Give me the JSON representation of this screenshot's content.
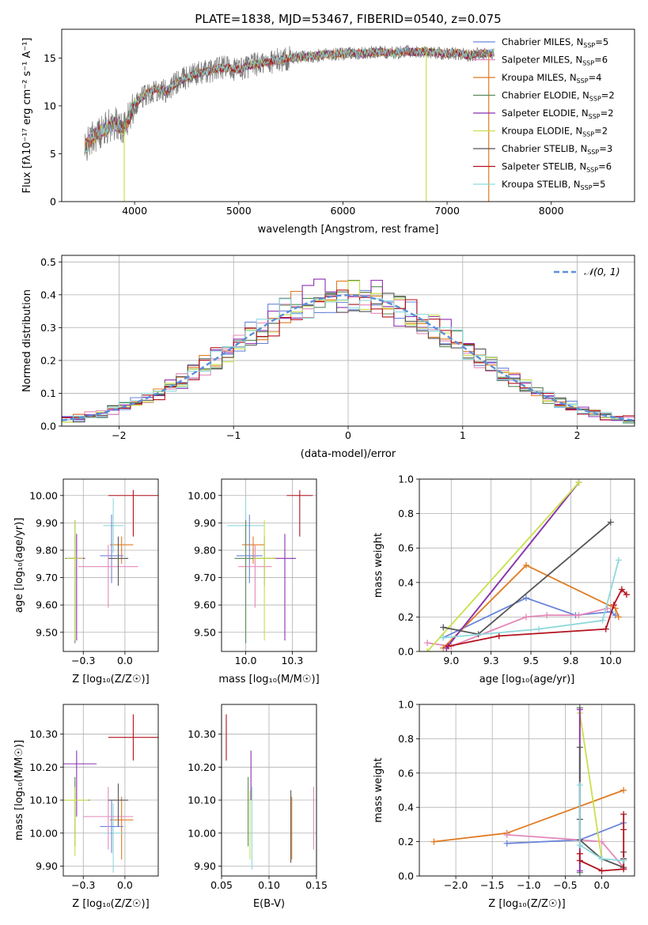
{
  "figure": {
    "title": "PLATE=1838, MJD=53467, FIBERID=0540, z=0.075"
  },
  "colors": {
    "Chabrier MILES": "#6b86d9",
    "Salpeter MILES": "#e389b9",
    "Kroupa MILES": "#e07b22",
    "Chabrier ELODIE": "#5a8a5a",
    "Salpeter ELODIE": "#8e2fb0",
    "Kroupa ELODIE": "#c8e04a",
    "Chabrier STELIB": "#555555",
    "Salpeter STELIB": "#b3121d",
    "Kroupa STELIB": "#8fd9dc",
    "data": "#777777",
    "normal": "#5b8fd9",
    "grid": "#b0b0b0"
  },
  "chart_data": [
    {
      "id": "spectrum",
      "type": "line",
      "title": "PLATE=1838, MJD=53467, FIBERID=0540, z=0.075",
      "xlabel": "wavelength [Angstrom, rest frame]",
      "ylabel": "Flux [fλ10⁻¹⁷ erg cm⁻² s⁻¹ A⁻¹]",
      "xlim": [
        3300,
        8800
      ],
      "ylim": [
        0,
        18
      ],
      "xticks": [
        4000,
        5000,
        6000,
        7000,
        8000
      ],
      "yticks": [
        0,
        5,
        10,
        15
      ],
      "grid": false,
      "legend_position": "top-right",
      "legend": [
        "Chabrier MILES, N_SSP=5",
        "Salpeter MILES, N_SSP=6",
        "Kroupa MILES, N_SSP=4",
        "Chabrier ELODIE, N_SSP=2",
        "Salpeter ELODIE, N_SSP=2",
        "Kroupa ELODIE, N_SSP=2",
        "Chabrier STELIB, N_SSP=3",
        "Salpeter STELIB, N_SSP=6",
        "Kroupa STELIB, N_SSP=5"
      ],
      "continuum": {
        "x": [
          3520,
          3600,
          3700,
          3800,
          3900,
          4000,
          4100,
          4200,
          4300,
          4400,
          4500,
          4600,
          4700,
          4800,
          4900,
          5000,
          5100,
          5200,
          5300,
          5400,
          5500,
          5600,
          5700,
          5800,
          5900,
          6000,
          6100,
          6200,
          6300,
          6400,
          6500,
          6600,
          6700,
          6800,
          6900,
          7000,
          7100,
          7200,
          7300,
          7400,
          7450
        ],
        "y": [
          5.5,
          6.8,
          7.5,
          8.2,
          7.6,
          10.2,
          11.2,
          11.8,
          11.5,
          12.4,
          13.0,
          13.4,
          13.6,
          13.9,
          14.0,
          13.8,
          14.2,
          14.4,
          14.6,
          14.8,
          15.0,
          15.1,
          15.2,
          15.3,
          15.4,
          15.4,
          15.5,
          15.5,
          15.6,
          15.6,
          15.5,
          15.7,
          15.6,
          15.7,
          15.5,
          15.4,
          15.5,
          15.3,
          15.4,
          15.5,
          15.5
        ]
      },
      "dips": [
        {
          "series": "Kroupa ELODIE",
          "x": 3900
        },
        {
          "series": "Kroupa ELODIE",
          "x": 6800
        },
        {
          "series": "Kroupa MILES",
          "x": 7400
        }
      ]
    },
    {
      "id": "residuals",
      "type": "histogram",
      "xlabel": "(data-model)/error",
      "ylabel": "Normed distribution",
      "xlim": [
        -2.5,
        2.5
      ],
      "ylim": [
        0,
        0.52
      ],
      "xticks": [
        -2,
        -1,
        0,
        1,
        2
      ],
      "yticks": [
        0.0,
        0.1,
        0.2,
        0.3,
        0.4,
        0.5
      ],
      "grid": true,
      "legend": [
        "𝒩(0, 1)"
      ],
      "legend_position": "top-right",
      "bin_width": 0.1,
      "bin_start": -2.5
    },
    {
      "id": "age-Z",
      "type": "errorbar",
      "xlabel": "Z [log₁₀(Z/Z☉)]",
      "ylabel": "age  [log₁₀(age/yr)]",
      "xlim": [
        -0.37,
        0.2
      ],
      "ylim": [
        9.43,
        10.06
      ],
      "xticks": [
        -0.25,
        0.0
      ],
      "yticks": [
        9.5,
        9.6,
        9.7,
        9.8,
        9.9,
        10.0
      ],
      "grid": true,
      "points": [
        {
          "series": "Salpeter STELIB",
          "x": 0.05,
          "xerr": 0.15,
          "y": 10.0,
          "yerr_lo": 0.15,
          "yerr_hi": 0.02
        },
        {
          "series": "Kroupa MILES",
          "x": -0.02,
          "xerr": 0.07,
          "y": 9.82,
          "yerr_lo": 0.07,
          "yerr_hi": 0.03
        },
        {
          "series": "Kroupa STELIB",
          "x": -0.07,
          "xerr": 0.06,
          "y": 9.89,
          "yerr_lo": 0.1,
          "yerr_hi": 0.1
        },
        {
          "series": "Chabrier MILES",
          "x": -0.08,
          "xerr": 0.07,
          "y": 9.78,
          "yerr_lo": 0.1,
          "yerr_hi": 0.15
        },
        {
          "series": "Salpeter MILES",
          "x": -0.1,
          "xerr": 0.18,
          "y": 9.74,
          "yerr_lo": 0.15,
          "yerr_hi": 0.08
        },
        {
          "series": "Chabrier STELIB",
          "x": -0.04,
          "xerr": 0.06,
          "y": 9.77,
          "yerr_lo": 0.1,
          "yerr_hi": 0.08
        },
        {
          "series": "Chabrier ELODIE",
          "x": -0.3,
          "xerr": 0.06,
          "y": 9.77,
          "yerr_lo": 0.31,
          "yerr_hi": 0.14
        },
        {
          "series": "Salpeter ELODIE",
          "x": -0.29,
          "xerr": 0.05,
          "y": 9.77,
          "yerr_lo": 0.3,
          "yerr_hi": 0.09
        },
        {
          "series": "Kroupa ELODIE",
          "x": -0.3,
          "xerr": 0.05,
          "y": 9.77,
          "yerr_lo": 0.3,
          "yerr_hi": 0.14
        }
      ]
    },
    {
      "id": "age-mass",
      "type": "errorbar",
      "xlabel": "mass [log₁₀(M/M☉)]",
      "xlim": [
        9.87,
        10.38
      ],
      "ylim": [
        9.43,
        10.06
      ],
      "xticks": [
        10.0,
        10.25
      ],
      "yticks": [
        9.5,
        9.6,
        9.7,
        9.8,
        9.9,
        10.0
      ],
      "grid": true,
      "points": [
        {
          "series": "Salpeter STELIB",
          "x": 10.29,
          "xerr": 0.07,
          "y": 10.0,
          "yerr_lo": 0.15,
          "yerr_hi": 0.02
        },
        {
          "series": "Kroupa MILES",
          "x": 10.04,
          "xerr": 0.06,
          "y": 9.82,
          "yerr_lo": 0.07,
          "yerr_hi": 0.03
        },
        {
          "series": "Kroupa STELIB",
          "x": 10.0,
          "xerr": 0.1,
          "y": 9.89,
          "yerr_lo": 0.1,
          "yerr_hi": 0.1
        },
        {
          "series": "Chabrier MILES",
          "x": 10.02,
          "xerr": 0.07,
          "y": 9.78,
          "yerr_lo": 0.1,
          "yerr_hi": 0.15
        },
        {
          "series": "Salpeter MILES",
          "x": 10.05,
          "xerr": 0.09,
          "y": 9.74,
          "yerr_lo": 0.15,
          "yerr_hi": 0.08
        },
        {
          "series": "Chabrier STELIB",
          "x": 10.1,
          "xerr": 0.06,
          "y": 9.77,
          "yerr_lo": 0.1,
          "yerr_hi": 0.08
        },
        {
          "series": "Chabrier ELODIE",
          "x": 10.0,
          "xerr": 0.06,
          "y": 9.77,
          "yerr_lo": 0.31,
          "yerr_hi": 0.14
        },
        {
          "series": "Salpeter ELODIE",
          "x": 10.21,
          "xerr": 0.06,
          "y": 9.77,
          "yerr_lo": 0.3,
          "yerr_hi": 0.09
        },
        {
          "series": "Kroupa ELODIE",
          "x": 10.1,
          "xerr": 0.06,
          "y": 9.77,
          "yerr_lo": 0.3,
          "yerr_hi": 0.14
        }
      ]
    },
    {
      "id": "massweight-age",
      "type": "line",
      "xlabel": "age  [log₁₀(age/yr)]",
      "ylabel": "mass weight",
      "xlim": [
        8.8,
        10.15
      ],
      "ylim": [
        0,
        1.0
      ],
      "xticks": [
        9.0,
        9.25,
        9.5,
        9.75,
        10.0
      ],
      "yticks": [
        0.0,
        0.2,
        0.4,
        0.6,
        0.8,
        1.0
      ],
      "grid": true,
      "series": [
        {
          "name": "Chabrier MILES",
          "x": [
            8.95,
            9.47,
            9.78,
            10.0,
            10.03
          ],
          "y": [
            0.08,
            0.31,
            0.21,
            0.23,
            0.21
          ]
        },
        {
          "name": "Salpeter MILES",
          "x": [
            8.85,
            9.0,
            9.47,
            9.6,
            9.8,
            9.98
          ],
          "y": [
            0.05,
            0.03,
            0.2,
            0.21,
            0.21,
            0.25
          ]
        },
        {
          "name": "Kroupa MILES",
          "x": [
            8.95,
            9.47,
            10.03,
            10.05
          ],
          "y": [
            0.02,
            0.5,
            0.25,
            0.2
          ]
        },
        {
          "name": "Chabrier ELODIE",
          "x": [
            8.97,
            9.8
          ],
          "y": [
            0.02,
            0.98
          ]
        },
        {
          "name": "Salpeter ELODIE",
          "x": [
            8.97,
            9.8
          ],
          "y": [
            0.02,
            0.98
          ]
        },
        {
          "name": "Kroupa ELODIE",
          "x": [
            8.85,
            9.8
          ],
          "y": [
            0.0,
            0.98
          ]
        },
        {
          "name": "Chabrier STELIB",
          "x": [
            8.95,
            9.17,
            10.0
          ],
          "y": [
            0.14,
            0.1,
            0.75
          ]
        },
        {
          "name": "Salpeter STELIB",
          "x": [
            8.98,
            9.3,
            9.97,
            10.02,
            10.07,
            10.1
          ],
          "y": [
            0.03,
            0.09,
            0.13,
            0.27,
            0.36,
            0.33
          ]
        },
        {
          "name": "Kroupa STELIB",
          "x": [
            8.95,
            9.55,
            9.95,
            10.05
          ],
          "y": [
            0.08,
            0.13,
            0.18,
            0.53
          ]
        }
      ]
    },
    {
      "id": "mass-Z",
      "type": "errorbar",
      "xlabel": "Z [log₁₀(Z/Z☉)]",
      "ylabel": "mass [log₁₀(M/M☉)]",
      "xlim": [
        -0.37,
        0.2
      ],
      "ylim": [
        9.87,
        10.39
      ],
      "xticks": [
        -0.25,
        0.0
      ],
      "yticks": [
        9.9,
        10.0,
        10.1,
        10.2,
        10.3
      ],
      "grid": true,
      "points": [
        {
          "series": "Salpeter STELIB",
          "x": 0.05,
          "xerr": 0.15,
          "y": 10.29,
          "yerr_lo": 0.07,
          "yerr_hi": 0.07
        },
        {
          "series": "Kroupa MILES",
          "x": -0.02,
          "xerr": 0.07,
          "y": 10.04,
          "yerr_lo": 0.12,
          "yerr_hi": 0.07
        },
        {
          "series": "Kroupa STELIB",
          "x": -0.07,
          "xerr": 0.06,
          "y": 10.0,
          "yerr_lo": 0.12,
          "yerr_hi": 0.09
        },
        {
          "series": "Chabrier MILES",
          "x": -0.08,
          "xerr": 0.07,
          "y": 10.02,
          "yerr_lo": 0.08,
          "yerr_hi": 0.08
        },
        {
          "series": "Salpeter MILES",
          "x": -0.1,
          "xerr": 0.15,
          "y": 10.05,
          "yerr_lo": 0.1,
          "yerr_hi": 0.09
        },
        {
          "series": "Chabrier STELIB",
          "x": -0.04,
          "xerr": 0.06,
          "y": 10.1,
          "yerr_lo": 0.08,
          "yerr_hi": 0.05
        },
        {
          "series": "Chabrier ELODIE",
          "x": -0.3,
          "xerr": 0.09,
          "y": 10.1,
          "yerr_lo": 0.14,
          "yerr_hi": 0.07
        },
        {
          "series": "Salpeter ELODIE",
          "x": -0.29,
          "xerr": 0.12,
          "y": 10.21,
          "yerr_lo": 0.16,
          "yerr_hi": 0.04
        },
        {
          "series": "Kroupa ELODIE",
          "x": -0.3,
          "xerr": 0.08,
          "y": 10.1,
          "yerr_lo": 0.17,
          "yerr_hi": 0.04
        }
      ]
    },
    {
      "id": "mass-EBV",
      "type": "errorbar",
      "xlabel": "E(B-V)",
      "xlim": [
        0.05,
        0.15
      ],
      "ylim": [
        9.87,
        10.39
      ],
      "xticks": [
        0.05,
        0.1,
        0.15
      ],
      "yticks": [
        9.9,
        10.0,
        10.1,
        10.2,
        10.3
      ],
      "grid": true,
      "points": [
        {
          "series": "Salpeter STELIB",
          "x": 0.055,
          "xerr": 0,
          "y": 10.29,
          "yerr_lo": 0.07,
          "yerr_hi": 0.07
        },
        {
          "series": "Salpeter ELODIE",
          "x": 0.081,
          "xerr": 0,
          "y": 10.2,
          "yerr_lo": 0.1,
          "yerr_hi": 0.05
        },
        {
          "series": "Chabrier ELODIE",
          "x": 0.078,
          "xerr": 0,
          "y": 10.1,
          "yerr_lo": 0.14,
          "yerr_hi": 0.07
        },
        {
          "series": "Kroupa ELODIE",
          "x": 0.08,
          "xerr": 0,
          "y": 10.06,
          "yerr_lo": 0.14,
          "yerr_hi": 0.07
        },
        {
          "series": "Kroupa STELIB",
          "x": 0.082,
          "xerr": 0,
          "y": 10.03,
          "yerr_lo": 0.14,
          "yerr_hi": 0.11
        },
        {
          "series": "Chabrier STELIB",
          "x": 0.123,
          "xerr": 0,
          "y": 10.04,
          "yerr_lo": 0.13,
          "yerr_hi": 0.09
        },
        {
          "series": "Kroupa MILES",
          "x": 0.124,
          "xerr": 0,
          "y": 10.04,
          "yerr_lo": 0.12,
          "yerr_hi": 0.07
        },
        {
          "series": "Salpeter MILES",
          "x": 0.147,
          "xerr": 0,
          "y": 10.05,
          "yerr_lo": 0.1,
          "yerr_hi": 0.09
        }
      ]
    },
    {
      "id": "massweight-Z",
      "type": "line",
      "xlabel": "Z [log₁₀(Z/Z☉)]",
      "ylabel": "mass weight",
      "xlim": [
        -2.5,
        0.45
      ],
      "ylim": [
        0,
        1.0
      ],
      "xticks": [
        -2.0,
        -1.5,
        -1.0,
        -0.5,
        0.0
      ],
      "yticks": [
        0.0,
        0.2,
        0.4,
        0.6,
        0.8,
        1.0
      ],
      "grid": true,
      "series": [
        {
          "name": "Kroupa MILES",
          "x": [
            -2.3,
            -1.3,
            0.3
          ],
          "y": [
            0.2,
            0.25,
            0.5
          ]
        },
        {
          "name": "Chabrier MILES",
          "x": [
            -1.3,
            -0.3,
            0.3
          ],
          "y": [
            0.19,
            0.21,
            0.31
          ]
        },
        {
          "name": "Salpeter MILES",
          "x": [
            -1.3,
            -0.3,
            0.0,
            0.3
          ],
          "y": [
            0.24,
            0.21,
            0.2,
            0.05
          ]
        },
        {
          "name": "Kroupa ELODIE",
          "x": [
            -0.3,
            -0.3,
            0.0
          ],
          "y": [
            0.98,
            0.95,
            0.1
          ]
        },
        {
          "name": "Chabrier ELODIE",
          "x": [
            -0.3,
            -0.3
          ],
          "y": [
            0.02,
            0.98
          ]
        },
        {
          "name": "Salpeter ELODIE",
          "x": [
            -0.3,
            -0.3
          ],
          "y": [
            0.03,
            0.97
          ]
        },
        {
          "name": "Chabrier STELIB",
          "x": [
            -0.3,
            -0.3,
            -0.3,
            0.0,
            0.3,
            0.3,
            0.3
          ],
          "y": [
            0.75,
            0.33,
            0.21,
            0.1,
            0.05,
            0.14,
            0.1
          ]
        },
        {
          "name": "Salpeter STELIB",
          "x": [
            -0.3,
            -0.3,
            0.0,
            0.3,
            0.3,
            0.3
          ],
          "y": [
            0.13,
            0.09,
            0.03,
            0.04,
            0.36,
            0.27
          ]
        },
        {
          "name": "Kroupa STELIB",
          "x": [
            -0.3,
            -0.3,
            0.0,
            0.3
          ],
          "y": [
            0.53,
            0.18,
            0.1,
            0.09
          ]
        }
      ]
    }
  ]
}
